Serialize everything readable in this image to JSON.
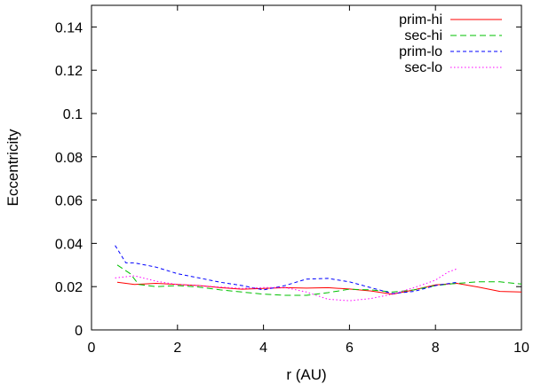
{
  "chart_data": {
    "type": "line",
    "title": "",
    "xlabel": "r (AU)",
    "ylabel": "Eccentricity",
    "xlim": [
      0,
      10
    ],
    "ylim": [
      0,
      0.15
    ],
    "xticks": [
      0,
      2,
      4,
      6,
      8,
      10
    ],
    "yticks": [
      0,
      0.02,
      0.04,
      0.06,
      0.08,
      0.1,
      0.12,
      0.14
    ],
    "xtick_labels": [
      "0",
      "2",
      "4",
      "6",
      "8",
      "10"
    ],
    "ytick_labels": [
      "0",
      "0.02",
      "0.04",
      "0.06",
      "0.08",
      "0.1",
      "0.12",
      "0.14"
    ],
    "grid": false,
    "legend_position": "top-right",
    "series": [
      {
        "name": "prim-hi",
        "color": "#ff0000",
        "dash": "solid",
        "x": [
          0.6,
          1.0,
          1.5,
          2.0,
          2.5,
          3.0,
          3.5,
          4.0,
          4.5,
          5.0,
          5.5,
          6.0,
          6.5,
          7.0,
          7.5,
          8.0,
          8.5,
          9.0,
          9.5,
          10.0
        ],
        "y": [
          0.022,
          0.021,
          0.0215,
          0.021,
          0.0205,
          0.0195,
          0.0188,
          0.0192,
          0.0195,
          0.0193,
          0.0195,
          0.0189,
          0.018,
          0.0165,
          0.0185,
          0.0208,
          0.0215,
          0.0198,
          0.0178,
          0.0175
        ]
      },
      {
        "name": "sec-hi",
        "color": "#00c000",
        "dash": "long",
        "x": [
          0.6,
          0.9,
          1.1,
          1.5,
          2.0,
          2.5,
          3.0,
          3.5,
          4.0,
          4.5,
          5.0,
          5.5,
          6.0,
          6.5,
          7.0,
          7.5,
          8.0,
          8.5,
          9.0,
          9.5,
          10.0
        ],
        "y": [
          0.03,
          0.026,
          0.021,
          0.02,
          0.0205,
          0.0198,
          0.0185,
          0.0175,
          0.0165,
          0.016,
          0.016,
          0.0172,
          0.0188,
          0.0185,
          0.0175,
          0.0185,
          0.0205,
          0.0215,
          0.0222,
          0.0222,
          0.0212
        ]
      },
      {
        "name": "prim-lo",
        "color": "#0000ff",
        "dash": "short",
        "x": [
          0.55,
          0.8,
          1.0,
          1.5,
          2.0,
          2.5,
          3.0,
          3.5,
          4.0,
          4.5,
          5.0,
          5.5,
          6.0,
          6.5,
          7.0,
          7.5,
          8.0,
          8.5
        ],
        "y": [
          0.039,
          0.031,
          0.031,
          0.029,
          0.026,
          0.024,
          0.022,
          0.0205,
          0.0185,
          0.0205,
          0.0235,
          0.0238,
          0.0222,
          0.0195,
          0.0168,
          0.0178,
          0.0205,
          0.022
        ]
      },
      {
        "name": "sec-lo",
        "color": "#ff00ff",
        "dash": "dot",
        "x": [
          0.55,
          1.0,
          1.5,
          2.0,
          2.5,
          3.0,
          3.5,
          4.0,
          4.5,
          5.0,
          5.5,
          6.0,
          6.5,
          7.0,
          7.5,
          8.0,
          8.3,
          8.5
        ],
        "y": [
          0.024,
          0.025,
          0.0225,
          0.021,
          0.0205,
          0.0198,
          0.0192,
          0.0196,
          0.0196,
          0.0175,
          0.0142,
          0.0135,
          0.0145,
          0.0165,
          0.0195,
          0.023,
          0.0268,
          0.0282
        ]
      }
    ]
  }
}
